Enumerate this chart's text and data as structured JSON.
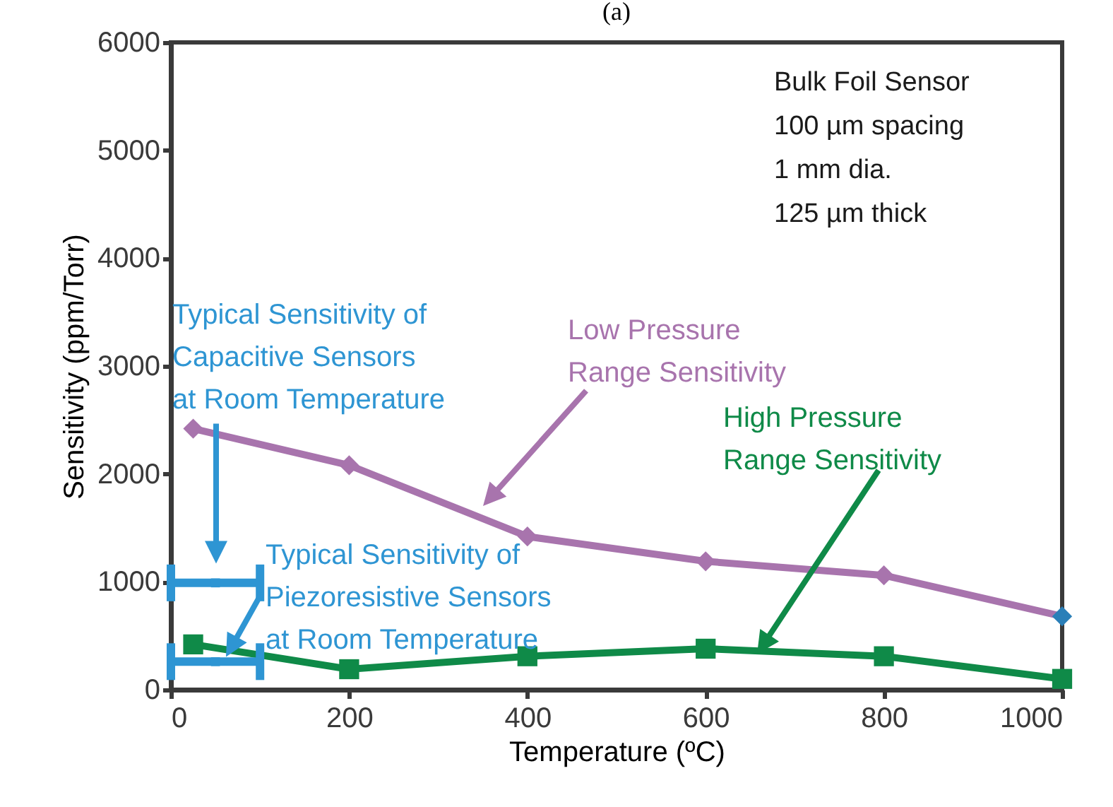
{
  "chart_data": {
    "type": "line",
    "title": "(a)",
    "xlabel": "Temperature (ºC)",
    "ylabel": "Sensitivity (ppm/Torr)",
    "xlim": [
      0,
      1000
    ],
    "xticks": [
      0,
      200,
      400,
      600,
      800,
      1000
    ],
    "ylim": [
      0,
      6000
    ],
    "yticks": [
      0,
      1000,
      2000,
      3000,
      4000,
      5000,
      6000
    ],
    "grid": false,
    "line_style": "solid",
    "series": [
      {
        "marker": "diamond",
        "color": "#a874ad",
        "colors": [
          "#a874ad",
          "#a874ad",
          "#a874ad",
          "#a874ad",
          "#a874ad",
          "#2a7fb8"
        ],
        "x": [
          25,
          200,
          400,
          600,
          800,
          1000
        ],
        "values": [
          2420,
          2080,
          1420,
          1190,
          1060,
          680
        ]
      },
      {
        "marker": "square",
        "color": "#0f8a48",
        "x": [
          25,
          200,
          400,
          600,
          800,
          1000
        ],
        "values": [
          420,
          190,
          310,
          380,
          310,
          100
        ]
      },
      {
        "type": "scatter",
        "marker": "square",
        "color": "#2e95d3",
        "x": [
          50,
          50
        ],
        "values": [
          990,
          260
        ],
        "xerrors": [
          50,
          50
        ]
      }
    ],
    "annotations": [
      "Bulk Foil Sensor\n100 µm spacing\n1 mm dia.\n125 µm thick",
      "Low Pressure\nRange Sensitivity",
      "High Pressure\nRange Sensitivity",
      "Typical Sensitivity of\nCapacitive Sensors\nat Room Temperature",
      "Typical Sensitivity of\nPiezoresistive Sensors\nat Room Temperature"
    ]
  }
}
